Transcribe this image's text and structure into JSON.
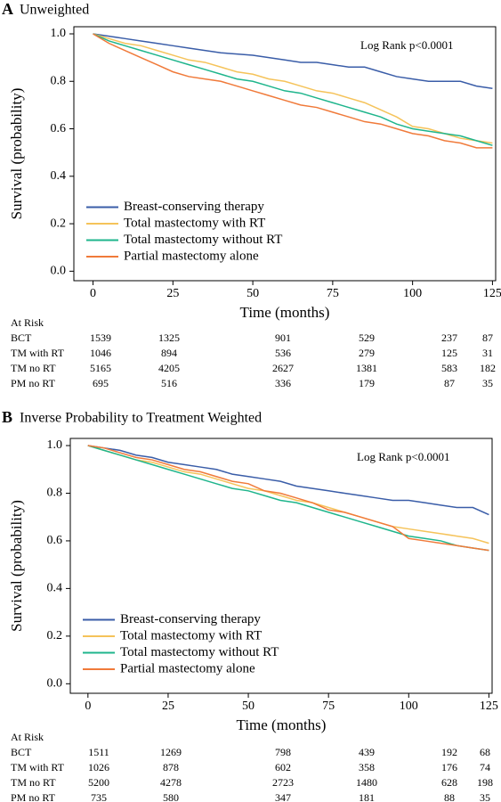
{
  "chart_data": [
    {
      "type": "line",
      "panel": "A",
      "title": "Unweighted",
      "annotation": "Log Rank p<0.0001",
      "xlabel": "Time (months)",
      "ylabel": "Survival (probability)",
      "xlim": [
        -6,
        126
      ],
      "ylim": [
        -0.04,
        1.03
      ],
      "xticks": [
        0,
        25,
        50,
        75,
        100,
        125
      ],
      "yticks": [
        {
          "value": 0,
          "label": "0.0"
        },
        0.2,
        0.4,
        0.6,
        0.8,
        {
          "value": 1,
          "label": "1.0"
        }
      ],
      "legend": "lower left",
      "x": [
        0,
        5,
        10,
        15,
        20,
        25,
        30,
        35,
        40,
        45,
        50,
        55,
        60,
        65,
        70,
        75,
        80,
        85,
        90,
        95,
        100,
        105,
        110,
        115,
        120,
        125
      ],
      "series": [
        {
          "name": "Breast-conserving therapy",
          "color": "#3a5da8",
          "values": [
            1.0,
            0.99,
            0.98,
            0.97,
            0.96,
            0.95,
            0.94,
            0.93,
            0.92,
            0.915,
            0.91,
            0.9,
            0.89,
            0.88,
            0.88,
            0.87,
            0.86,
            0.86,
            0.84,
            0.82,
            0.81,
            0.8,
            0.8,
            0.8,
            0.78,
            0.77
          ]
        },
        {
          "name": "Total mastectomy with RT",
          "color": "#f5c35a",
          "values": [
            1.0,
            0.98,
            0.96,
            0.95,
            0.93,
            0.91,
            0.89,
            0.88,
            0.86,
            0.84,
            0.83,
            0.81,
            0.8,
            0.78,
            0.76,
            0.75,
            0.73,
            0.71,
            0.68,
            0.65,
            0.61,
            0.6,
            0.58,
            0.56,
            0.55,
            0.54
          ]
        },
        {
          "name": "Total mastectomy without RT",
          "color": "#1fb58c",
          "values": [
            1.0,
            0.97,
            0.95,
            0.93,
            0.91,
            0.89,
            0.87,
            0.85,
            0.83,
            0.81,
            0.8,
            0.78,
            0.76,
            0.75,
            0.73,
            0.71,
            0.69,
            0.67,
            0.65,
            0.62,
            0.6,
            0.59,
            0.58,
            0.57,
            0.55,
            0.53
          ]
        },
        {
          "name": "Partial mastectomy alone",
          "color": "#f07a3a",
          "values": [
            1.0,
            0.96,
            0.93,
            0.9,
            0.87,
            0.84,
            0.82,
            0.81,
            0.8,
            0.78,
            0.76,
            0.74,
            0.72,
            0.7,
            0.69,
            0.67,
            0.65,
            0.63,
            0.62,
            0.6,
            0.58,
            0.57,
            0.55,
            0.54,
            0.52,
            0.52
          ]
        }
      ],
      "at_risk": {
        "label": "At Risk",
        "rows": [
          {
            "name": "BCT",
            "values": [
              1539,
              1325,
              901,
              529,
              237,
              87
            ]
          },
          {
            "name": "TM with RT",
            "values": [
              1046,
              894,
              536,
              279,
              125,
              31
            ]
          },
          {
            "name": "TM no RT",
            "values": [
              5165,
              4205,
              2627,
              1381,
              583,
              182
            ]
          },
          {
            "name": "PM no RT",
            "values": [
              695,
              516,
              336,
              179,
              87,
              35
            ]
          }
        ]
      }
    },
    {
      "type": "line",
      "panel": "B",
      "title": "Inverse Probability to Treatment Weighted",
      "annotation": "Log Rank p<0.0001",
      "xlabel": "Time  (months)",
      "ylabel": "Survival (probability)",
      "xlim": [
        -5.5,
        126
      ],
      "ylim": [
        -0.04,
        1.03
      ],
      "xticks": [
        0,
        25,
        50,
        75,
        100,
        125
      ],
      "yticks": [
        {
          "value": 0,
          "label": "0.0"
        },
        0.2,
        0.4,
        0.6,
        0.8,
        {
          "value": 1,
          "label": "1.0"
        }
      ],
      "legend": "lower left",
      "x": [
        0,
        5,
        10,
        15,
        20,
        25,
        30,
        35,
        40,
        45,
        50,
        55,
        60,
        65,
        70,
        75,
        80,
        85,
        90,
        95,
        100,
        105,
        110,
        115,
        120,
        125
      ],
      "series": [
        {
          "name": "Breast-conserving therapy",
          "color": "#3a5da8",
          "values": [
            1.0,
            0.99,
            0.98,
            0.96,
            0.95,
            0.93,
            0.92,
            0.91,
            0.9,
            0.88,
            0.87,
            0.86,
            0.85,
            0.83,
            0.82,
            0.81,
            0.8,
            0.79,
            0.78,
            0.77,
            0.77,
            0.76,
            0.75,
            0.74,
            0.74,
            0.71
          ]
        },
        {
          "name": "Total mastectomy with RT",
          "color": "#f5c35a",
          "values": [
            1.0,
            0.98,
            0.96,
            0.94,
            0.93,
            0.91,
            0.89,
            0.88,
            0.86,
            0.84,
            0.82,
            0.81,
            0.79,
            0.77,
            0.76,
            0.74,
            0.72,
            0.7,
            0.68,
            0.66,
            0.65,
            0.64,
            0.63,
            0.62,
            0.61,
            0.59
          ]
        },
        {
          "name": "Total mastectomy without RT",
          "color": "#1fb58c",
          "values": [
            1.0,
            0.98,
            0.96,
            0.94,
            0.92,
            0.9,
            0.88,
            0.86,
            0.84,
            0.82,
            0.81,
            0.79,
            0.77,
            0.76,
            0.74,
            0.72,
            0.7,
            0.68,
            0.66,
            0.64,
            0.62,
            0.61,
            0.6,
            0.58,
            0.57,
            0.56
          ]
        },
        {
          "name": "Partial mastectomy alone",
          "color": "#f07a3a",
          "values": [
            1.0,
            0.99,
            0.97,
            0.95,
            0.94,
            0.92,
            0.9,
            0.89,
            0.87,
            0.85,
            0.84,
            0.81,
            0.8,
            0.78,
            0.76,
            0.73,
            0.72,
            0.7,
            0.68,
            0.66,
            0.61,
            0.6,
            0.59,
            0.58,
            0.57,
            0.56
          ]
        }
      ],
      "at_risk": {
        "label": "At Risk",
        "rows": [
          {
            "name": "BCT",
            "values": [
              1511,
              1269,
              798,
              439,
              192,
              68
            ]
          },
          {
            "name": "TM with RT",
            "values": [
              1026,
              878,
              602,
              358,
              176,
              74
            ]
          },
          {
            "name": "TM no RT",
            "values": [
              5200,
              4278,
              2723,
              1480,
              628,
              198
            ]
          },
          {
            "name": "PM no RT",
            "values": [
              735,
              580,
              347,
              181,
              88,
              35
            ]
          }
        ]
      }
    }
  ]
}
